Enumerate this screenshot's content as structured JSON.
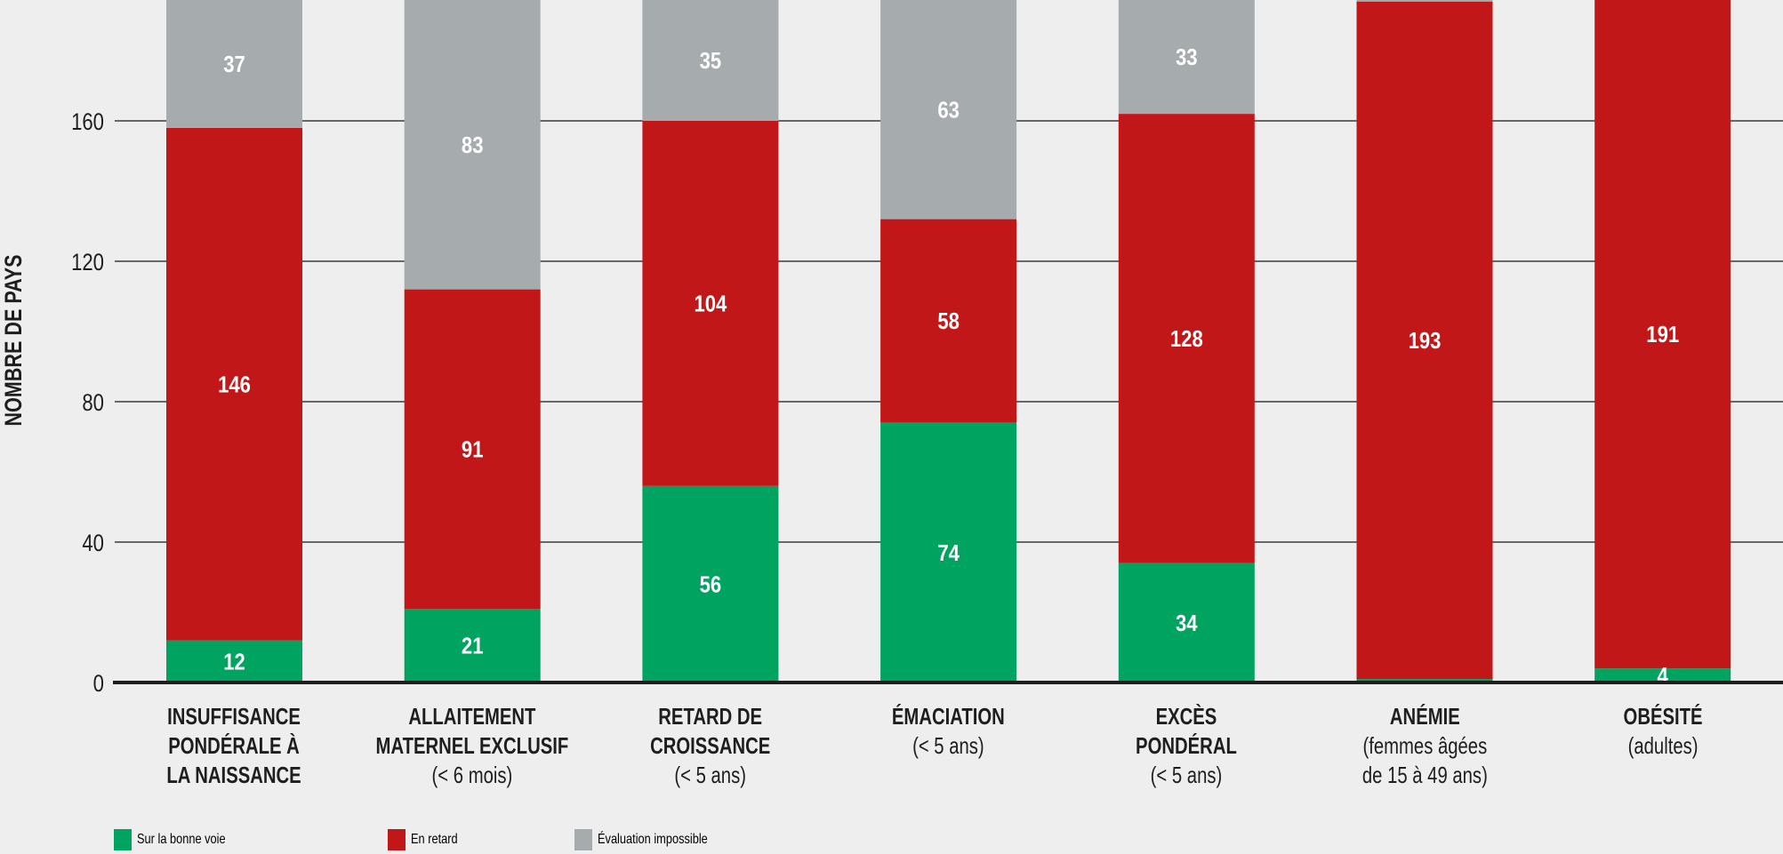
{
  "chart_data": {
    "type": "bar",
    "stacked": true,
    "title": "",
    "xlabel": "",
    "ylabel": "NOMBRE DE PAYS",
    "ylim": [
      0,
      195
    ],
    "yticks": [
      0,
      40,
      80,
      120,
      160
    ],
    "grid": true,
    "legend_position": "bottom-left",
    "categories": [
      {
        "main": [
          "INSUFFISANCE",
          "PONDÉRALE À",
          "LA NAISSANCE"
        ],
        "sub": []
      },
      {
        "main": [
          "ALLAITEMENT",
          "MATERNEL EXCLUSIF"
        ],
        "sub": [
          "(< 6 mois)"
        ]
      },
      {
        "main": [
          "RETARD DE",
          "CROISSANCE"
        ],
        "sub": [
          "(< 5 ans)"
        ]
      },
      {
        "main": [
          "ÉMACIATION"
        ],
        "sub": [
          "(< 5 ans)"
        ]
      },
      {
        "main": [
          "EXCÈS",
          "PONDÉRAL"
        ],
        "sub": [
          "(< 5 ans)"
        ]
      },
      {
        "main": [
          "ANÉMIE"
        ],
        "sub": [
          "(femmes âgées",
          "de 15 à 49 ans)"
        ]
      },
      {
        "main": [
          "OBÉSITÉ"
        ],
        "sub": [
          "(adultes)"
        ]
      }
    ],
    "series": [
      {
        "name": "Sur la bonne voie",
        "color": "#00a35f",
        "values": [
          12,
          21,
          56,
          74,
          34,
          1,
          4
        ],
        "labels": [
          "12",
          "21",
          "56",
          "74",
          "34",
          "",
          "4"
        ]
      },
      {
        "name": "En retard",
        "color": "#c21718",
        "values": [
          146,
          91,
          104,
          58,
          128,
          193,
          191
        ],
        "labels": [
          "146",
          "91",
          "104",
          "58",
          "128",
          "193",
          "191"
        ]
      },
      {
        "name": "Évaluation impossible",
        "color": "#a6abae",
        "values": [
          37,
          83,
          35,
          63,
          33,
          1,
          0
        ],
        "labels": [
          "37",
          "83",
          "35",
          "63",
          "33",
          "",
          ""
        ]
      }
    ]
  },
  "legend": {
    "items": [
      {
        "label": "Sur la bonne voie",
        "color": "#00a35f"
      },
      {
        "label": "En retard",
        "color": "#c21718"
      },
      {
        "label": "Évaluation impossible",
        "color": "#a6abae"
      }
    ]
  }
}
